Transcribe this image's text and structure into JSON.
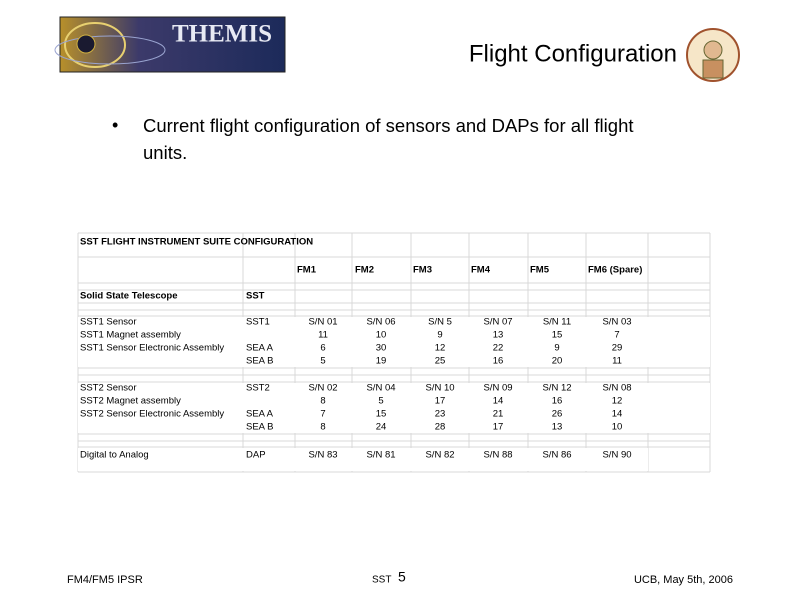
{
  "header": {
    "logo_text": "THEMIS",
    "title": "Flight Configuration"
  },
  "bullets": [
    "Current flight configuration of sensors and DAPs for all flight units."
  ],
  "table": {
    "title": "SST FLIGHT INSTRUMENT SUITE CONFIGURATION",
    "columns": [
      "FM1",
      "FM2",
      "FM3",
      "FM4",
      "FM5",
      "FM6 (Spare)"
    ],
    "section": {
      "label": "Solid State Telescope",
      "unit": "SST"
    },
    "groups": [
      [
        {
          "label": "SST1 Sensor",
          "unit": "SST1",
          "values": [
            "S/N 01",
            "S/N 06",
            "S/N 5",
            "S/N 07",
            "S/N 11",
            "S/N 03"
          ]
        },
        {
          "label": "SST1 Magnet assembly",
          "values": [
            11,
            10,
            9,
            13,
            15,
            7
          ]
        },
        {
          "label": "SST1 Sensor Electronic Assembly",
          "unit": "SEA A",
          "values": [
            6,
            30,
            12,
            22,
            9,
            29
          ]
        },
        {
          "unit": "SEA B",
          "values": [
            5,
            19,
            25,
            16,
            20,
            11
          ]
        }
      ],
      [
        {
          "label": "SST2 Sensor",
          "unit": "SST2",
          "values": [
            "S/N 02",
            "S/N 04",
            "S/N 10",
            "S/N 09",
            "S/N 12",
            "S/N 08"
          ]
        },
        {
          "label": "SST2 Magnet assembly",
          "values": [
            8,
            5,
            17,
            14,
            16,
            12
          ]
        },
        {
          "label": "SST2 Sensor Electronic Assembly",
          "unit": "SEA A",
          "values": [
            7,
            15,
            23,
            21,
            26,
            14
          ]
        },
        {
          "unit": "SEA B",
          "values": [
            8,
            24,
            28,
            17,
            13,
            10
          ]
        }
      ],
      [
        {
          "label": "Digital to Analog",
          "unit": "DAP",
          "values": [
            "S/N 83",
            "S/N 81",
            "S/N 82",
            "S/N 88",
            "S/N 86",
            "S/N 90"
          ]
        }
      ]
    ]
  },
  "footer": {
    "left": "FM4/FM5 IPSR",
    "center": "SST",
    "page": 5,
    "right": "UCB, May 5th, 2006"
  }
}
